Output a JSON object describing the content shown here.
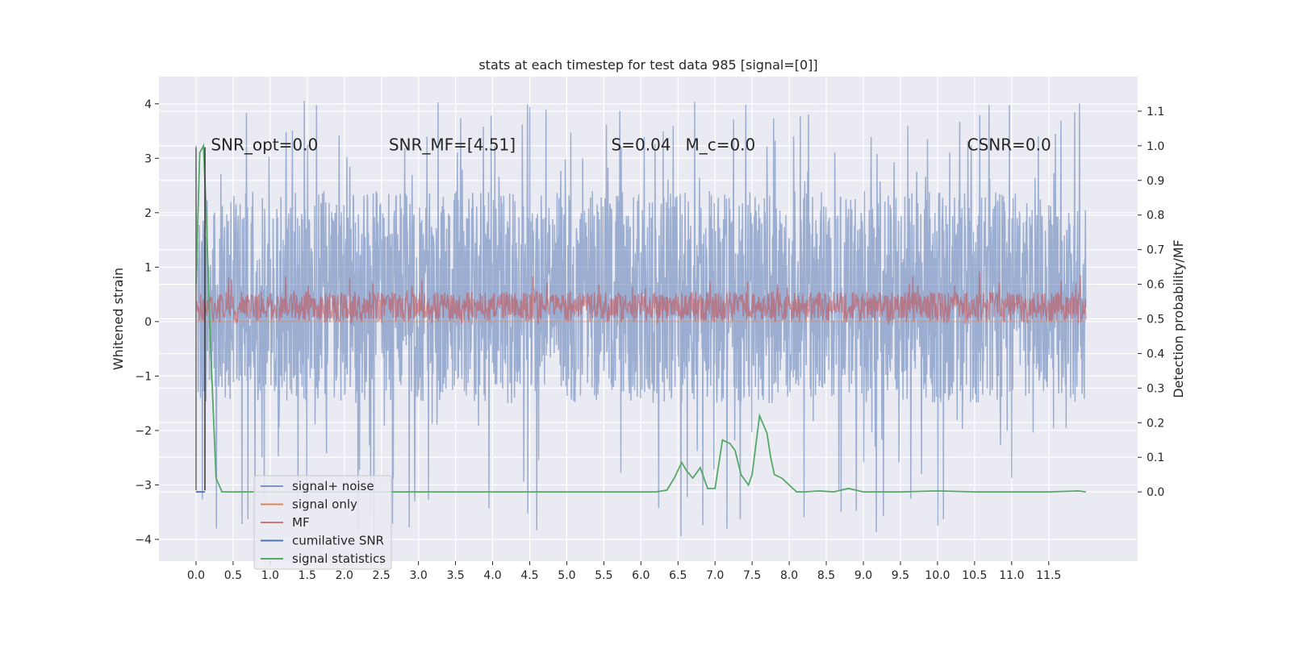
{
  "chart_data": {
    "type": "line",
    "title": "stats at each timestep for test data 985 [signal=[0]]",
    "xlabel": "",
    "ylabel": "Whitened strain",
    "ylabel_right": "Detection probability/MF",
    "xlim": [
      -0.5,
      12.7
    ],
    "ylim": [
      -4.4,
      4.5
    ],
    "ylim_right": [
      -0.2,
      1.2
    ],
    "x_ticks": [
      "0.0",
      "0.5",
      "1.0",
      "1.5",
      "2.0",
      "2.5",
      "3.0",
      "3.5",
      "4.0",
      "4.5",
      "5.0",
      "5.5",
      "6.0",
      "6.5",
      "7.0",
      "7.5",
      "8.0",
      "8.5",
      "9.0",
      "9.5",
      "10.0",
      "10.5",
      "11.0",
      "11.5"
    ],
    "y_ticks": [
      "4",
      "3",
      "2",
      "1",
      "0",
      "−1",
      "−2",
      "−3",
      "−4"
    ],
    "y_ticks_values": [
      4,
      3,
      2,
      1,
      0,
      -1,
      -2,
      -3,
      -4
    ],
    "y_ticks_right": [
      "1.1",
      "1.0",
      "0.9",
      "0.8",
      "0.7",
      "0.6",
      "0.5",
      "0.4",
      "0.3",
      "0.2",
      "0.1",
      "0.0"
    ],
    "y_ticks_right_values": [
      1.1,
      1.0,
      0.9,
      0.8,
      0.7,
      0.6,
      0.5,
      0.4,
      0.3,
      0.2,
      0.1,
      0.0
    ],
    "grid": true,
    "legend_position": "lower-left",
    "annotations": [
      {
        "text": "SNR_opt=0.0",
        "x": 0.2,
        "y": 3.25
      },
      {
        "text": "SNR_MF=[4.51]",
        "x": 2.6,
        "y": 3.25,
        "italic_part": "SNR_MF"
      },
      {
        "text": "S=0.04",
        "x": 5.6,
        "y": 3.25
      },
      {
        "text": "M_c=0.0",
        "x": 6.6,
        "y": 3.25
      },
      {
        "text": "CSNR=0.0",
        "x": 10.4,
        "y": 3.25
      }
    ],
    "series": [
      {
        "name": "signal+ noise",
        "color": "#4c72b0",
        "alpha": 0.5,
        "axis": "left",
        "x_range": [
          0,
          12.0
        ],
        "envelope": {
          "typical_low": -1.5,
          "typical_high": 2.4,
          "extreme_low": -3.95,
          "extreme_high": 4.1
        }
      },
      {
        "name": "signal only",
        "color": "#dd8452",
        "axis": "left",
        "x_range": [
          0,
          12.0
        ],
        "values_constant": 0.0
      },
      {
        "name": "MF",
        "color": "#c44e52",
        "alpha": 0.55,
        "axis": "left",
        "x_range": [
          0,
          12.0
        ],
        "envelope": {
          "typical_low": 0.0,
          "typical_high": 0.55,
          "extreme_low": -0.05,
          "extreme_high": 0.95
        }
      },
      {
        "name": "cumilative SNR",
        "color": "#4c72b0",
        "axis": "right",
        "x": [
          0,
          0.12
        ],
        "values": [
          0.0,
          0.0
        ]
      },
      {
        "name": "signal statistics",
        "color": "#55a868",
        "axis": "right",
        "x": [
          0.0,
          0.05,
          0.1,
          0.13,
          0.2,
          0.27,
          0.35,
          0.5,
          1.0,
          2.0,
          3.0,
          4.0,
          5.0,
          6.0,
          6.2,
          6.35,
          6.45,
          6.55,
          6.62,
          6.7,
          6.8,
          6.9,
          7.0,
          7.1,
          7.2,
          7.27,
          7.35,
          7.45,
          7.5,
          7.6,
          7.7,
          7.75,
          7.8,
          7.9,
          8.0,
          8.1,
          8.2,
          8.4,
          8.6,
          8.8,
          9.0,
          9.5,
          10.0,
          10.5,
          11.0,
          11.5,
          11.9,
          12.0
        ],
        "values": [
          0.6,
          0.98,
          1.0,
          0.85,
          0.4,
          0.04,
          0.0,
          0.0,
          0.0,
          0.0,
          0.0,
          0.0,
          0.0,
          0.0,
          0.0,
          0.005,
          0.04,
          0.085,
          0.06,
          0.04,
          0.07,
          0.01,
          0.01,
          0.15,
          0.14,
          0.12,
          0.05,
          0.02,
          0.05,
          0.22,
          0.17,
          0.1,
          0.05,
          0.04,
          0.02,
          0.0,
          0.0,
          0.003,
          0.0,
          0.01,
          0.0,
          0.0,
          0.003,
          0.0,
          0.0,
          0.0,
          0.003,
          0.0
        ]
      }
    ],
    "vertical_markers": [
      {
        "x": 0.0,
        "ylow": -3.1,
        "yhigh": 3.2,
        "color": "#6e6e6e"
      },
      {
        "x": 0.12,
        "ylow": -3.1,
        "yhigh": 3.2,
        "color": "#3c3c3c"
      }
    ]
  }
}
